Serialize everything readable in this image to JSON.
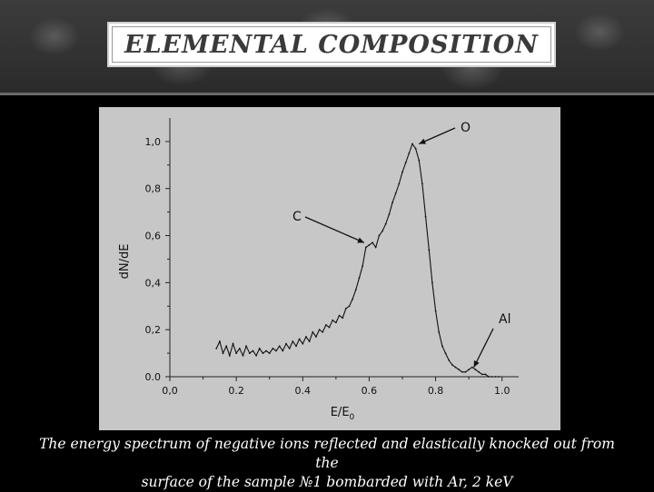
{
  "slide": {
    "title": "ELEMENTAL COMPOSITION",
    "caption_line1": "The energy spectrum of  negative ions reflected and elastically knocked out from the",
    "caption_line2": "surface of the sample №1 bombarded with Ar, 2 keV"
  },
  "chart_data": {
    "type": "line",
    "title": "",
    "xlabel": "E/E",
    "xlabel_subscript": "0",
    "ylabel": "dN/dE",
    "xlim": [
      0.0,
      1.05
    ],
    "ylim": [
      0.0,
      1.1
    ],
    "x_ticks": [
      0.0,
      0.2,
      0.4,
      0.6,
      0.8,
      1.0
    ],
    "x_tick_labels": [
      "0,0",
      "0.2",
      "0.4",
      "0.6",
      "0.8",
      "1.0"
    ],
    "y_ticks": [
      0.0,
      0.2,
      0.4,
      0.6,
      0.8,
      1.0
    ],
    "y_tick_labels": [
      "0.0",
      "0,2",
      "0,4",
      "0,6",
      "0,8",
      "1,0"
    ],
    "grid": false,
    "series": [
      {
        "x": [
          0.14,
          0.15,
          0.16,
          0.17,
          0.18,
          0.19,
          0.2,
          0.21,
          0.22,
          0.23,
          0.24,
          0.25,
          0.26,
          0.27,
          0.28,
          0.29,
          0.3,
          0.31,
          0.32,
          0.33,
          0.34,
          0.35,
          0.36,
          0.37,
          0.38,
          0.39,
          0.4,
          0.41,
          0.42,
          0.43,
          0.44,
          0.45,
          0.46,
          0.47,
          0.48,
          0.49,
          0.5,
          0.51,
          0.52,
          0.53,
          0.54,
          0.55,
          0.56,
          0.57,
          0.58,
          0.59,
          0.6,
          0.61,
          0.62,
          0.63,
          0.64,
          0.65,
          0.66,
          0.67,
          0.68,
          0.69,
          0.7,
          0.71,
          0.72,
          0.73,
          0.74,
          0.75,
          0.76,
          0.77,
          0.78,
          0.79,
          0.8,
          0.81,
          0.82,
          0.83,
          0.84,
          0.85,
          0.86,
          0.87,
          0.88,
          0.89,
          0.9,
          0.91,
          0.92,
          0.93,
          0.94,
          0.95,
          0.96,
          0.97,
          0.98,
          0.99
        ],
        "y": [
          0.12,
          0.15,
          0.1,
          0.13,
          0.09,
          0.14,
          0.1,
          0.12,
          0.09,
          0.13,
          0.1,
          0.11,
          0.09,
          0.12,
          0.1,
          0.11,
          0.1,
          0.12,
          0.11,
          0.13,
          0.11,
          0.14,
          0.12,
          0.15,
          0.13,
          0.16,
          0.14,
          0.17,
          0.15,
          0.19,
          0.17,
          0.2,
          0.19,
          0.22,
          0.21,
          0.24,
          0.23,
          0.26,
          0.25,
          0.29,
          0.3,
          0.33,
          0.37,
          0.42,
          0.47,
          0.55,
          0.56,
          0.57,
          0.55,
          0.6,
          0.62,
          0.65,
          0.69,
          0.74,
          0.78,
          0.82,
          0.87,
          0.91,
          0.95,
          0.99,
          0.97,
          0.92,
          0.82,
          0.68,
          0.54,
          0.4,
          0.28,
          0.19,
          0.13,
          0.1,
          0.07,
          0.05,
          0.04,
          0.03,
          0.02,
          0.02,
          0.03,
          0.04,
          0.03,
          0.02,
          0.01,
          0.01,
          0.0,
          0.0,
          0.0,
          0.0
        ]
      }
    ],
    "annotations": [
      {
        "label": "O",
        "x": 0.75,
        "y": 0.99
      },
      {
        "label": "C",
        "x": 0.585,
        "y": 0.57
      },
      {
        "label": "Al",
        "x": 0.915,
        "y": 0.04
      }
    ]
  }
}
